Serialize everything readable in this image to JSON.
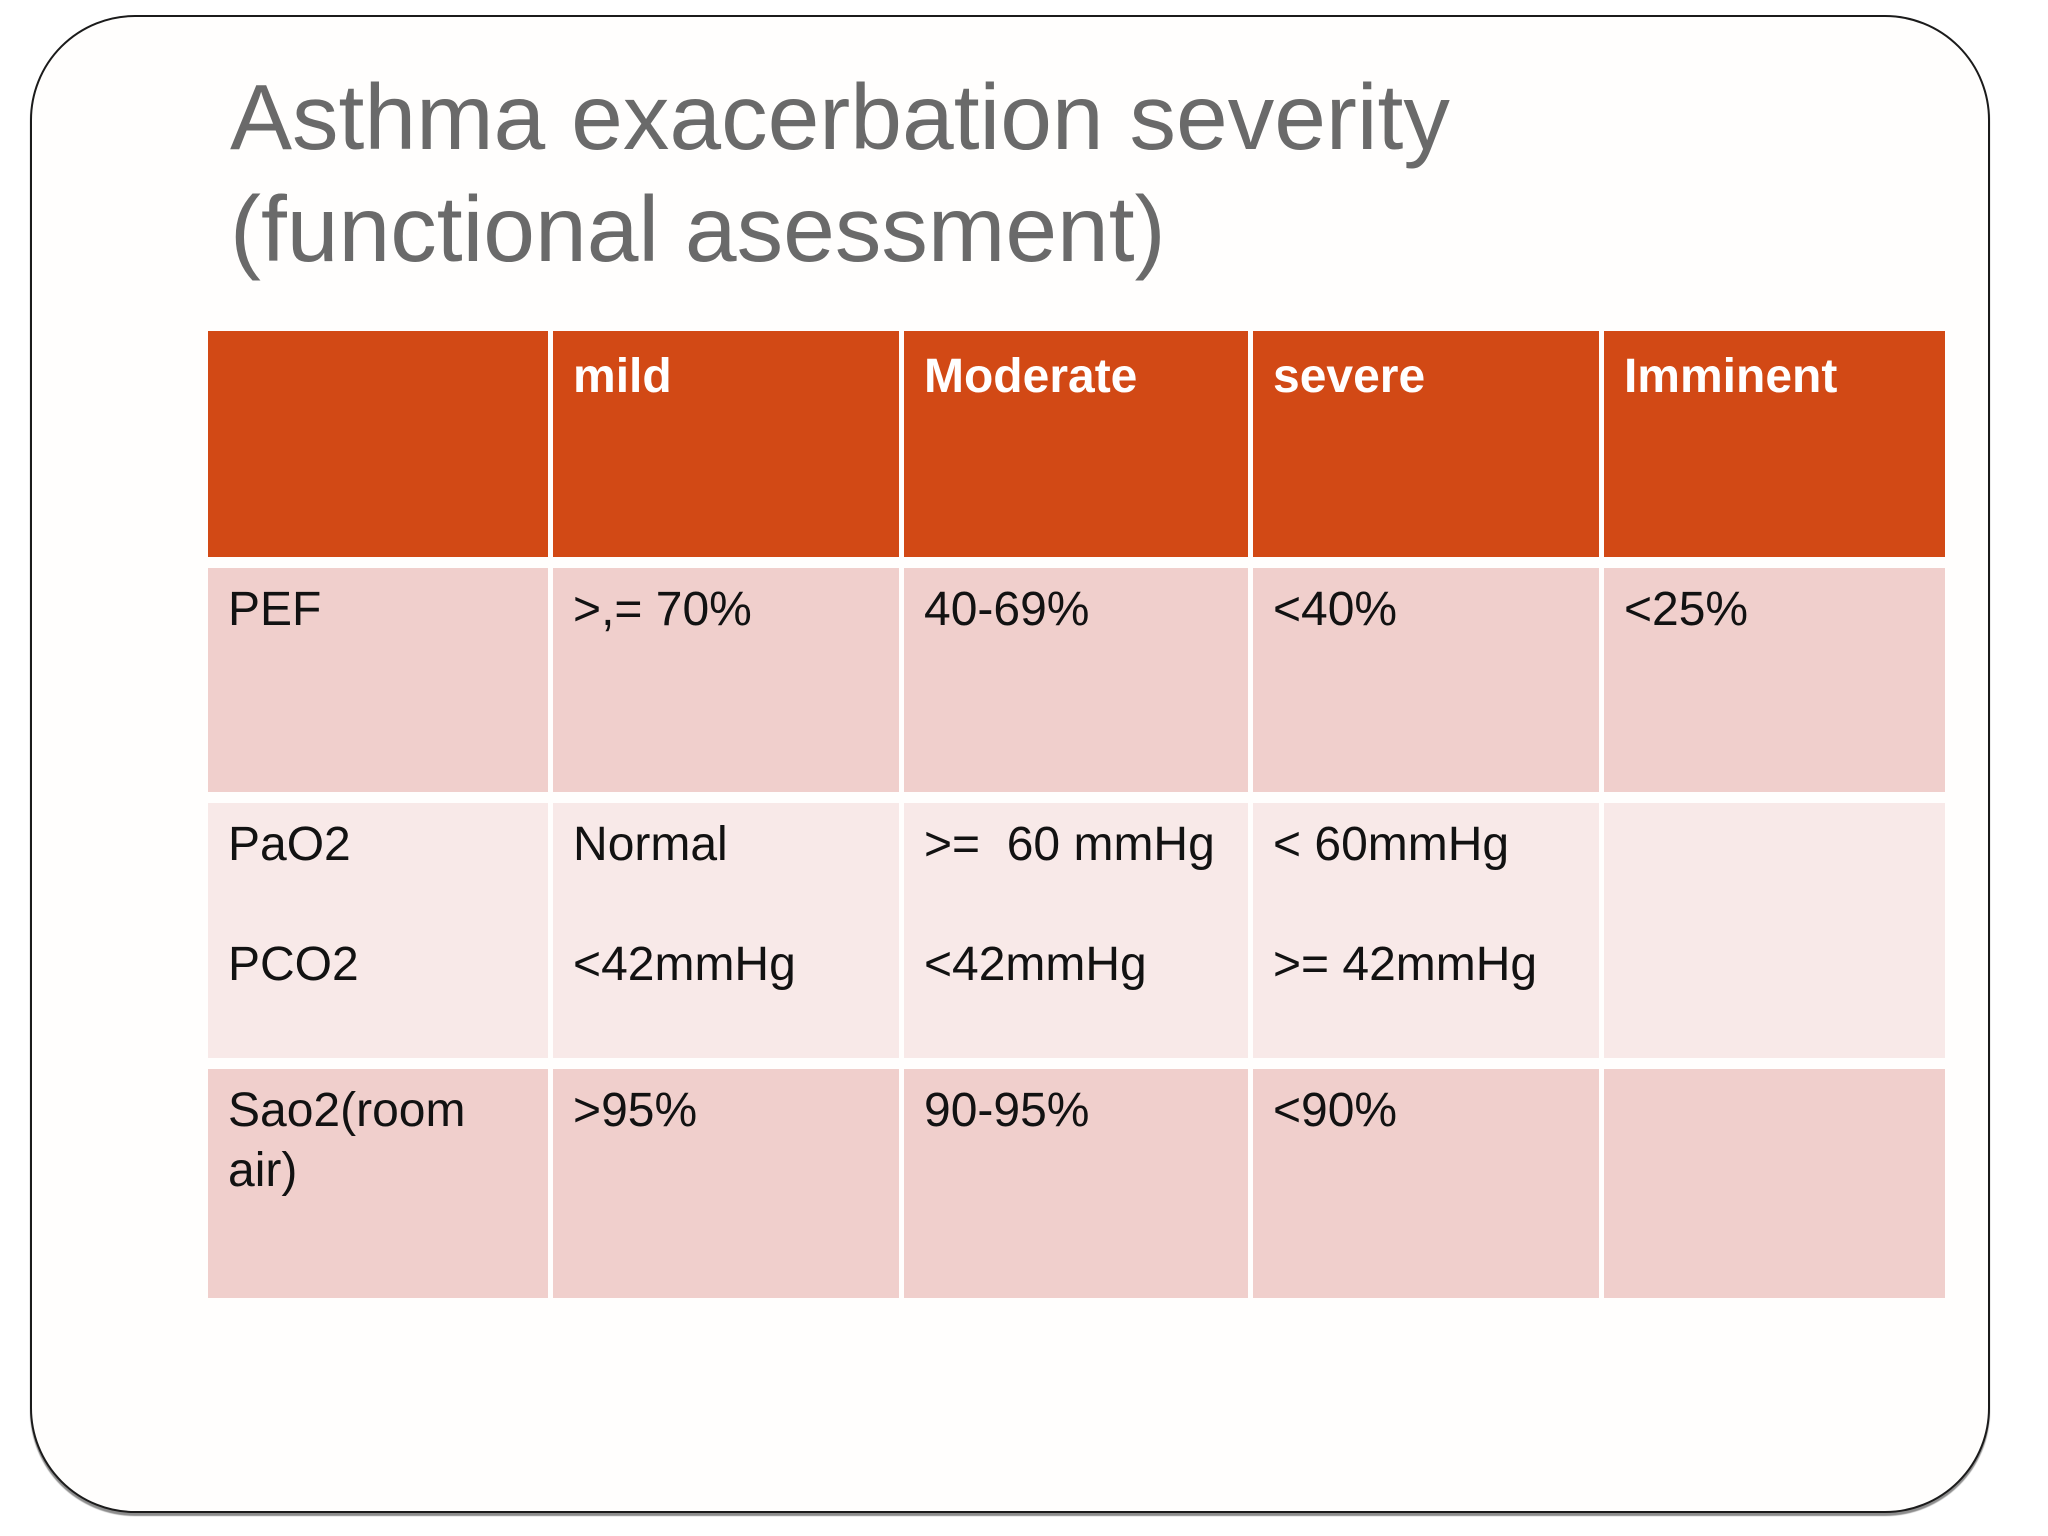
{
  "title": {
    "text": "Asthma exacerbation severity\n(functional asessment)",
    "color": "#6a6a6a"
  },
  "colors": {
    "header_bg": "#d24915",
    "header_text": "#ffffff",
    "row_band_dark": "#f0cfcc",
    "row_band_light": "#f8e9e8",
    "body_text": "#121212",
    "frame_border": "#1b1b1b"
  },
  "table": {
    "header": [
      "",
      "mild",
      "Moderate",
      "severe",
      "Imminent"
    ],
    "rows": [
      {
        "cells": [
          "PEF",
          ">,= 70%",
          "40-69%",
          "<40%",
          "<25%"
        ]
      },
      {
        "cells": [
          "PaO2\n\nPCO2",
          "Normal\n\n<42mmHg",
          ">=  60 mmHg\n\n<42mmHg",
          "< 60mmHg\n\n>= 42mmHg",
          ""
        ]
      },
      {
        "cells": [
          "Sao2(room air)",
          ">95%",
          "90-95%",
          "<90%",
          ""
        ]
      }
    ]
  }
}
